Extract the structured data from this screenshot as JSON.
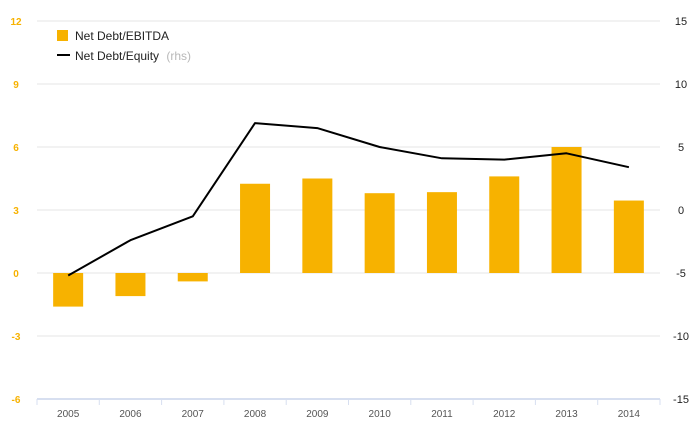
{
  "colors": {
    "bar": "#f7b200",
    "line": "#000000",
    "left_axis_text": "#f7b200",
    "grid": "#e6e6e6",
    "baseline_band": "#d7dff0"
  },
  "legend": {
    "bar_label": "Net Debt/EBITDA",
    "line_label": "Net Debt/Equity",
    "line_suffix": "(rhs)",
    "placement": "top-left"
  },
  "chart_data": {
    "type": "bar",
    "categories": [
      "2005",
      "2006",
      "2007",
      "2008",
      "2009",
      "2010",
      "2011",
      "2012",
      "2013",
      "2014"
    ],
    "series": [
      {
        "name": "Net Debt/EBITDA",
        "type": "bar",
        "axis": "left",
        "values": [
          -1.6,
          -1.1,
          -0.4,
          4.25,
          4.5,
          3.8,
          3.85,
          4.6,
          6.0,
          3.45
        ]
      },
      {
        "name": "Net Debt/Equity (rhs)",
        "type": "line",
        "axis": "right",
        "values": [
          -5.2,
          -2.4,
          -0.5,
          6.9,
          6.5,
          5.0,
          4.1,
          4.0,
          4.5,
          3.4
        ]
      }
    ],
    "left_axis": {
      "ylim": [
        -6,
        12
      ],
      "ticks": [
        "-6",
        "-3",
        "0",
        "3",
        "6",
        "9",
        "12"
      ]
    },
    "right_axis": {
      "ylim": [
        -15,
        15
      ],
      "ticks": [
        "-15",
        "-10",
        "-5",
        "0",
        "5",
        "10",
        "15"
      ]
    },
    "grid": true,
    "legend_placement": "top-left",
    "title": "",
    "xlabel": "",
    "ylabel": ""
  }
}
